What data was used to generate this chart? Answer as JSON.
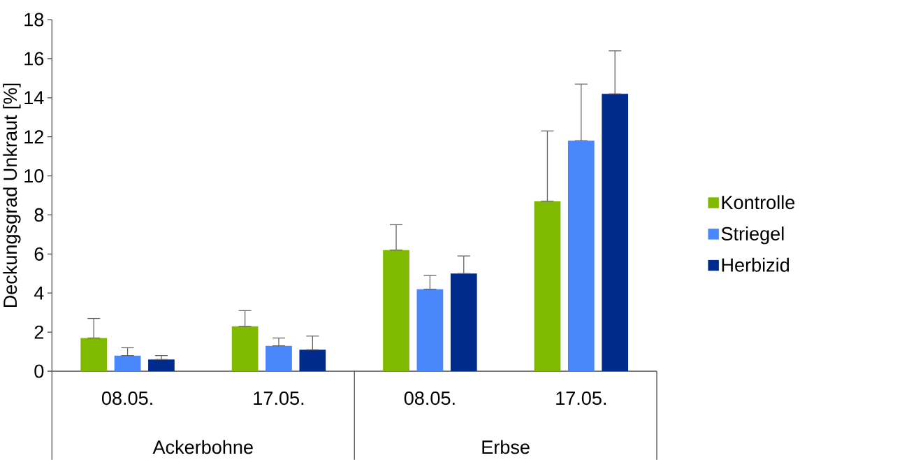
{
  "chart_data": {
    "type": "bar",
    "ylabel": "Deckungsgrad Unkraut [%]",
    "categories": [
      "08.05.",
      "17.05.",
      "08.05.",
      "17.05."
    ],
    "annotations": [
      "Ackerbohne",
      "Erbse"
    ],
    "series": [
      {
        "name": "Kontrolle",
        "color": "#7fba00",
        "values": [
          1.7,
          2.3,
          6.2,
          8.7
        ],
        "errors": [
          [
            1.7,
            2.7
          ],
          [
            2.3,
            3.1
          ],
          [
            6.2,
            7.5
          ],
          [
            8.7,
            12.3
          ]
        ]
      },
      {
        "name": "Striegel",
        "color": "#4a86fc",
        "values": [
          0.8,
          1.3,
          4.2,
          11.8
        ],
        "errors": [
          [
            0.8,
            1.2
          ],
          [
            1.3,
            1.7
          ],
          [
            4.2,
            4.9
          ],
          [
            11.8,
            14.7
          ]
        ]
      },
      {
        "name": "Herbizid",
        "color": "#002b8c",
        "values": [
          0.6,
          1.1,
          5.0,
          14.2
        ],
        "errors": [
          [
            0.6,
            0.8
          ],
          [
            1.1,
            1.8
          ],
          [
            5.0,
            5.9
          ],
          [
            14.2,
            16.4
          ]
        ]
      }
    ],
    "ylim": [
      0,
      18
    ],
    "yticks": [
      0,
      2,
      4,
      6,
      8,
      10,
      12,
      14,
      16,
      18
    ],
    "grid": false,
    "legend": "right"
  }
}
